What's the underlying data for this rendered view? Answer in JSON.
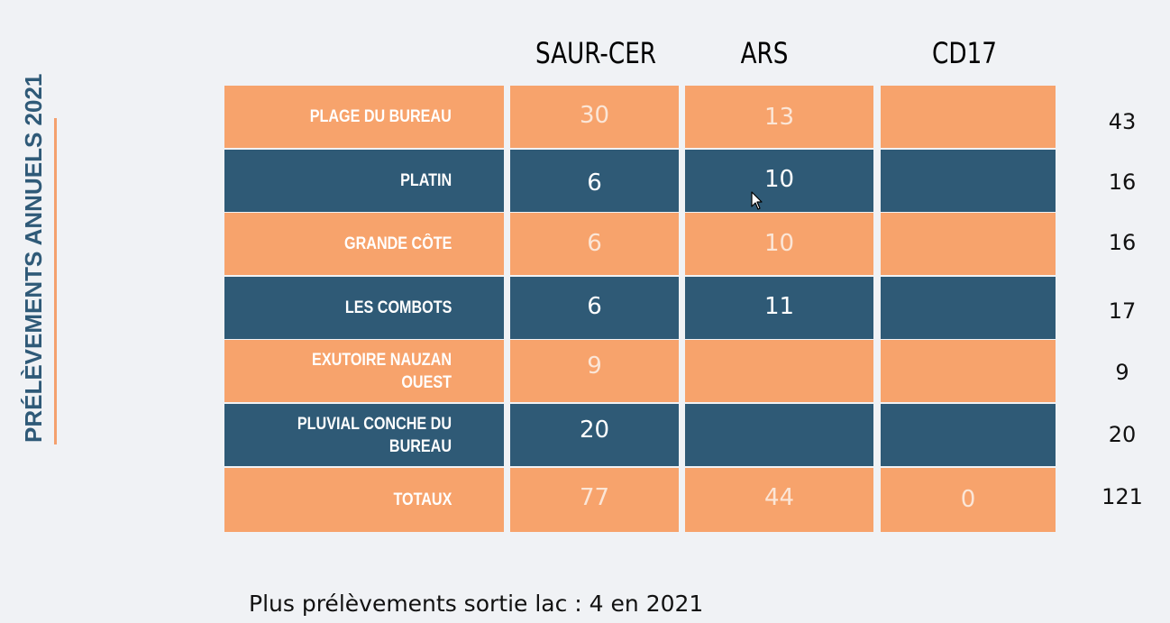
{
  "side_title": "PRÉLÈVEMENTS ANNUELS 2021",
  "columns": [
    "SAUR-CER",
    "ARS",
    "CD17"
  ],
  "rows": [
    {
      "label": "PLAGE DU BUREAU",
      "values": [
        "30",
        "13",
        ""
      ],
      "total": "43",
      "color": "orange"
    },
    {
      "label": "PLATIN",
      "values": [
        "6",
        "10",
        ""
      ],
      "total": "16",
      "color": "blue"
    },
    {
      "label": "GRANDE CÔTE",
      "values": [
        "6",
        "10",
        ""
      ],
      "total": "16",
      "color": "orange"
    },
    {
      "label": "LES COMBOTS",
      "values": [
        "6",
        "11",
        ""
      ],
      "total": "17",
      "color": "blue"
    },
    {
      "label": "EXUTOIRE NAUZAN OUEST",
      "values": [
        "9",
        "",
        ""
      ],
      "total": "9",
      "color": "orange"
    },
    {
      "label": "PLUVIAL CONCHE DU BUREAU",
      "values": [
        "20",
        "",
        ""
      ],
      "total": "20",
      "color": "blue"
    },
    {
      "label": "TOTAUX",
      "values": [
        "77",
        "44",
        "0"
      ],
      "total": "121",
      "color": "orange"
    }
  ],
  "footnote": "Plus prélèvements sortie lac : 4 en 2021",
  "colors": {
    "orange": "#f7a36c",
    "blue": "#2f5a76",
    "background": "#f0f2f5",
    "title": "#2f5a78"
  },
  "icons": {
    "cursor": "mouse-pointer-icon"
  }
}
